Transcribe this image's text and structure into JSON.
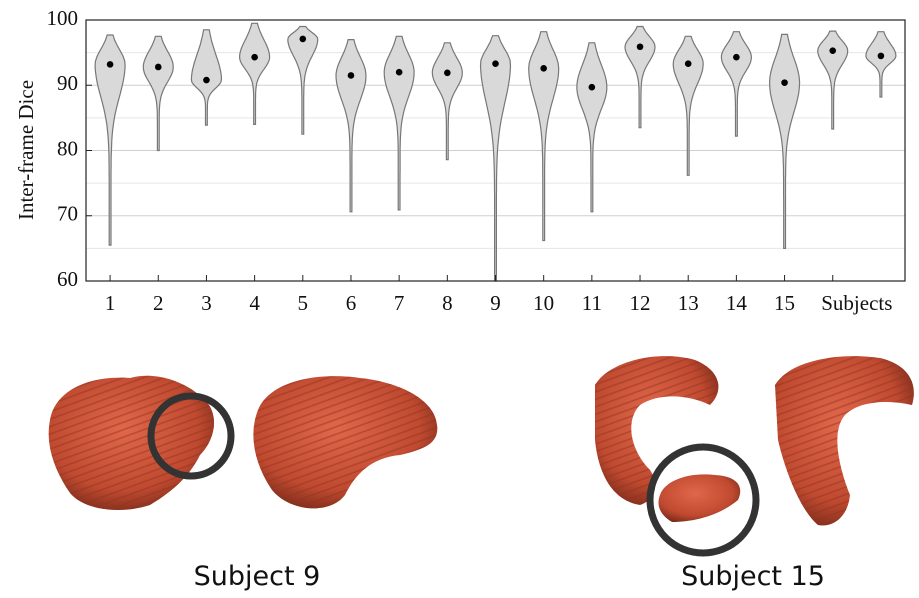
{
  "chart_data": {
    "type": "violin",
    "ylabel": "Inter-frame Dice",
    "categories": [
      "1",
      "2",
      "3",
      "4",
      "5",
      "6",
      "7",
      "8",
      "9",
      "10",
      "11",
      "12",
      "13",
      "14",
      "15",
      "Subjects",
      null
    ],
    "violins": [
      {
        "min": 65.5,
        "max": 97.7,
        "median": 93.2
      },
      {
        "min": 80.0,
        "max": 97.5,
        "median": 92.8
      },
      {
        "min": 83.9,
        "max": 98.5,
        "median": 90.8
      },
      {
        "min": 84.0,
        "max": 99.5,
        "median": 94.3
      },
      {
        "min": 82.5,
        "max": 99.0,
        "median": 97.1
      },
      {
        "min": 70.6,
        "max": 97.0,
        "median": 91.5
      },
      {
        "min": 70.9,
        "max": 97.5,
        "median": 92.0
      },
      {
        "min": 78.6,
        "max": 96.5,
        "median": 91.9
      },
      {
        "min": 60.0,
        "max": 97.6,
        "median": 93.3
      },
      {
        "min": 66.2,
        "max": 98.2,
        "median": 92.6
      },
      {
        "min": 70.6,
        "max": 96.5,
        "median": 89.7
      },
      {
        "min": 83.5,
        "max": 99.0,
        "median": 95.9
      },
      {
        "min": 76.2,
        "max": 97.5,
        "median": 93.3
      },
      {
        "min": 82.2,
        "max": 98.2,
        "median": 94.3
      },
      {
        "min": 65.0,
        "max": 97.8,
        "median": 90.4
      },
      {
        "min": 83.3,
        "max": 98.3,
        "median": 95.3
      },
      {
        "min": 88.2,
        "max": 98.2,
        "median": 94.5
      }
    ],
    "color": "#d9d9d9",
    "ylim": [
      60,
      100
    ],
    "yticks": [
      60,
      70,
      80,
      90,
      100
    ],
    "minor_grid": [
      65,
      75,
      85,
      95
    ],
    "grid": true
  },
  "figure_captions": [
    "Subject 9",
    "Subject 15"
  ]
}
